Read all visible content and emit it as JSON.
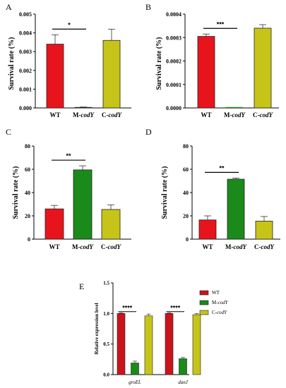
{
  "chart_data": [
    {
      "panel": "A",
      "type": "bar",
      "ylabel": "Survival rate (%)",
      "ylim": [
        0,
        0.005
      ],
      "yticks": [
        "0.000",
        "0.001",
        "0.002",
        "0.003",
        "0.004",
        "0.005"
      ],
      "categories": [
        "WT",
        "M-codY",
        "C-codY"
      ],
      "values": [
        0.0034,
        3e-05,
        0.0036
      ],
      "errors": [
        0.0005,
        2e-05,
        0.0006
      ],
      "colors": [
        "#e8141b",
        "#1a8a1a",
        "#c6c419"
      ],
      "significance": [
        {
          "from": 0,
          "to": 1,
          "label": "*"
        }
      ]
    },
    {
      "panel": "B",
      "type": "bar",
      "ylabel": "Survival rate (%)",
      "ylim": [
        0,
        0.0004
      ],
      "yticks": [
        "0.0000",
        "0.0001",
        "0.0002",
        "0.0003",
        "0.0004"
      ],
      "categories": [
        "WT",
        "M-codY",
        "C-codY"
      ],
      "values": [
        0.000305,
        0,
        0.00034
      ],
      "errors": [
        1e-05,
        0,
        1.5e-05
      ],
      "colors": [
        "#e8141b",
        "#1a8a1a",
        "#c6c419"
      ],
      "significance": [
        {
          "from": 0,
          "to": 1,
          "label": "***"
        }
      ]
    },
    {
      "panel": "C",
      "type": "bar",
      "ylabel": "Survival rate (%)",
      "ylim": [
        0,
        80
      ],
      "yticks": [
        "0",
        "20",
        "40",
        "60",
        "80"
      ],
      "categories": [
        "WT",
        "M-codY",
        "C-codY"
      ],
      "values": [
        26,
        59.5,
        25.5
      ],
      "errors": [
        3,
        3.5,
        4
      ],
      "colors": [
        "#e8141b",
        "#1a8a1a",
        "#c6c419"
      ],
      "significance": [
        {
          "from": 0,
          "to": 1,
          "label": "**"
        }
      ]
    },
    {
      "panel": "D",
      "type": "bar",
      "ylabel": "Survival rate (%)",
      "ylim": [
        0,
        80
      ],
      "yticks": [
        "0",
        "20",
        "40",
        "60",
        "80"
      ],
      "categories": [
        "WT",
        "M-codY",
        "C-codY"
      ],
      "values": [
        16.5,
        51.5,
        15.5
      ],
      "errors": [
        3.5,
        1,
        4
      ],
      "colors": [
        "#e8141b",
        "#1a8a1a",
        "#c6c419"
      ],
      "significance": [
        {
          "from": 0,
          "to": 1,
          "label": "**"
        }
      ]
    },
    {
      "panel": "E",
      "type": "bar",
      "ylabel": "Relative expression level",
      "ylim": [
        0,
        1.5
      ],
      "yticks": [
        "0.0",
        "0.5",
        "1.0",
        "1.5"
      ],
      "categories": [
        "groEL",
        "danJ"
      ],
      "series": [
        {
          "name": "WT",
          "values": [
            1.0,
            1.0
          ],
          "errors": [
            0.01,
            0.01
          ]
        },
        {
          "name": "M-codY",
          "values": [
            0.19,
            0.26
          ],
          "errors": [
            0.03,
            0.02
          ]
        },
        {
          "name": "C-codY",
          "values": [
            0.96,
            0.98
          ],
          "errors": [
            0.03,
            0.02
          ]
        }
      ],
      "colors": [
        "#c9141b",
        "#1a8a1a",
        "#c6c419"
      ],
      "significance": [
        {
          "category": 0,
          "label": "****"
        },
        {
          "category": 1,
          "label": "****"
        }
      ],
      "legend": "right"
    }
  ]
}
